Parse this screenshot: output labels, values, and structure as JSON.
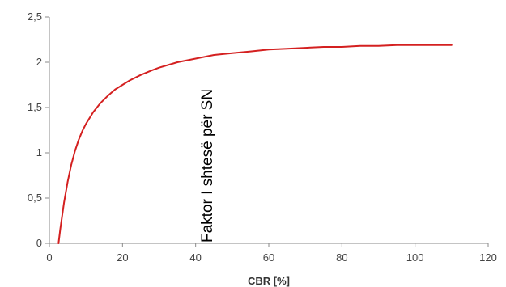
{
  "chart_data": {
    "type": "line",
    "title": "",
    "xlabel": "CBR [%]",
    "ylabel": "Faktor I shtesë për  SN",
    "xlim": [
      0,
      120
    ],
    "ylim": [
      0,
      2.5
    ],
    "x_ticks": [
      0,
      20,
      40,
      60,
      80,
      100,
      120
    ],
    "y_ticks": [
      0,
      0.5,
      1,
      1.5,
      2,
      2.5
    ],
    "x_tick_labels": [
      "0",
      "20",
      "40",
      "60",
      "80",
      "100",
      "120"
    ],
    "y_tick_labels": [
      "0",
      "0,5",
      "1",
      "1,5",
      "2",
      "2,5"
    ],
    "grid": false,
    "legend": "none",
    "series": [
      {
        "color": "#d42020",
        "x": [
          2.5,
          3,
          4,
          5,
          6,
          7,
          8,
          9,
          10,
          12,
          14,
          16,
          18,
          20,
          22,
          25,
          28,
          30,
          35,
          40,
          45,
          50,
          55,
          60,
          65,
          70,
          75,
          80,
          85,
          90,
          95,
          100,
          105,
          110
        ],
        "y": [
          0.0,
          0.16,
          0.45,
          0.68,
          0.87,
          1.02,
          1.14,
          1.24,
          1.32,
          1.45,
          1.55,
          1.63,
          1.7,
          1.75,
          1.8,
          1.86,
          1.91,
          1.94,
          2.0,
          2.04,
          2.08,
          2.1,
          2.12,
          2.14,
          2.15,
          2.16,
          2.17,
          2.17,
          2.18,
          2.18,
          2.19,
          2.19,
          2.19,
          2.19
        ]
      }
    ]
  }
}
